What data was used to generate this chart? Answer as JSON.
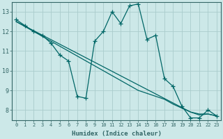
{
  "xlabel": "Humidex (Indice chaleur)",
  "x": [
    0,
    1,
    2,
    3,
    4,
    5,
    6,
    7,
    8,
    9,
    10,
    11,
    12,
    13,
    14,
    15,
    16,
    17,
    18,
    19,
    20,
    21,
    22,
    23
  ],
  "line_jagged": [
    12.6,
    12.3,
    12.0,
    11.8,
    11.4,
    10.8,
    10.5,
    8.7,
    8.6,
    11.5,
    12.0,
    13.0,
    12.4,
    13.3,
    13.4,
    11.6,
    11.8,
    9.6,
    9.2,
    8.2,
    7.6,
    7.6,
    8.0,
    7.7
  ],
  "line_reg1": [
    12.5,
    12.27,
    12.04,
    11.81,
    11.58,
    11.35,
    11.12,
    10.89,
    10.66,
    10.43,
    10.2,
    9.97,
    9.74,
    9.51,
    9.28,
    9.05,
    8.82,
    8.59,
    8.36,
    8.13,
    7.9,
    7.8,
    7.8,
    7.7
  ],
  "line_reg2": [
    12.5,
    12.25,
    12.0,
    11.75,
    11.5,
    11.25,
    11.0,
    10.75,
    10.5,
    10.25,
    10.0,
    9.75,
    9.5,
    9.25,
    9.0,
    8.85,
    8.7,
    8.55,
    8.3,
    8.1,
    7.9,
    7.75,
    7.8,
    7.7
  ],
  "bg_color": "#cce8e8",
  "grid_color_major": "#aacccc",
  "grid_color_minor": "#bbdddd",
  "line_color": "#006666",
  "axis_color": "#336666",
  "ylim": [
    7.5,
    13.5
  ],
  "xlim": [
    -0.5,
    23.5
  ],
  "yticks": [
    8,
    9,
    10,
    11,
    12,
    13
  ],
  "xticks": [
    0,
    1,
    2,
    3,
    4,
    5,
    6,
    7,
    8,
    9,
    10,
    11,
    12,
    13,
    14,
    15,
    16,
    17,
    18,
    19,
    20,
    21,
    22,
    23
  ]
}
